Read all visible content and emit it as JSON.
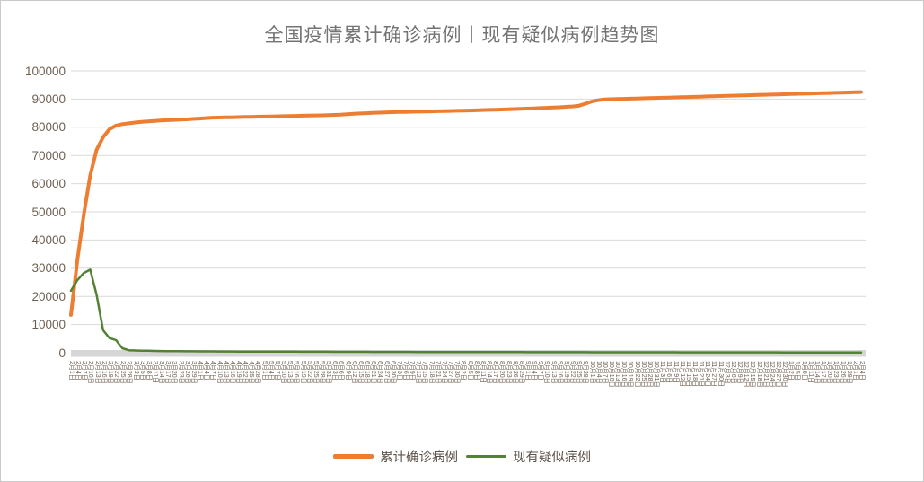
{
  "title": "全国疫情累计确诊病例丨现有疑似病例趋势图",
  "colors": {
    "title_text": "#737373",
    "tick_label": "#6e5f51",
    "gridline": "#d9d9d9",
    "axis_band": "#d6d6d6",
    "confirmed_line": "#ED7D31",
    "suspected_line": "#548235",
    "frame_border": "#c9c9c9",
    "background": "#ffffff"
  },
  "chart_data": {
    "type": "line",
    "title": "全国疫情累计确诊病例丨现有疑似病例趋势图",
    "xlabel": "",
    "ylabel": "",
    "ylim": [
      0,
      100000
    ],
    "grid": true,
    "legend_position": "bottom",
    "y_ticks": [
      0,
      10000,
      20000,
      30000,
      40000,
      50000,
      60000,
      70000,
      80000,
      90000,
      100000
    ],
    "x_labels": [
      "2月1日",
      "2月4日",
      "2月7日",
      "2月10日",
      "2月13日",
      "2月16日",
      "2月19日",
      "2月22日",
      "2月25日",
      "2月28日",
      "3月2日",
      "3月5日",
      "3月8日",
      "3月11日",
      "3月14日",
      "3月17日",
      "3月20日",
      "3月23日",
      "3月26日",
      "3月29日",
      "4月1日",
      "4月4日",
      "4月7日",
      "4月10日",
      "4月13日",
      "4月16日",
      "4月19日",
      "4月22日",
      "4月25日",
      "4月28日",
      "5月1日",
      "5月4日",
      "5月7日",
      "5月10日",
      "5月13日",
      "5月16日",
      "5月19日",
      "5月22日",
      "5月25日",
      "5月28日",
      "5月31日",
      "6月3日",
      "6月6日",
      "6月9日",
      "6月12日",
      "6月15日",
      "6月18日",
      "6月21日",
      "6月24日",
      "6月27日",
      "6月30日",
      "7月3日",
      "7月6日",
      "7月9日",
      "7月12日",
      "7月15日",
      "7月18日",
      "7月21日",
      "7月24日",
      "7月27日",
      "7月30日",
      "8月2日",
      "8月5日",
      "8月8日",
      "8月11日",
      "8月14日",
      "8月17日",
      "8月20日",
      "8月23日",
      "8月26日",
      "8月29日",
      "9月1日",
      "9月4日",
      "9月7日",
      "9月10日",
      "9月13日",
      "9月16日",
      "9月19日",
      "9月22日",
      "9月25日",
      "9月28日",
      "10月1日",
      "10月4日",
      "10月7日",
      "10月10日",
      "10月13日",
      "10月16日",
      "10月19日",
      "10月22日",
      "10月25日",
      "10月28日",
      "10月31日",
      "11月3日",
      "11月6日",
      "11月9日",
      "11月12日",
      "11月15日",
      "11月18日",
      "11月21日",
      "11月24日",
      "11月27日",
      "11月30日",
      "12月3日",
      "12月6日",
      "12月9日",
      "12月12日",
      "12月15日",
      "12月18日",
      "12月21日",
      "12月24日",
      "12月27日",
      "12月30日",
      "1月2日",
      "1月5日",
      "1月8日",
      "1月11日",
      "1月14日",
      "1月17日",
      "1月20日",
      "1月23日",
      "1月26日",
      "1月29日",
      "2月1日",
      "2月4日"
    ],
    "series": [
      {
        "name": "累计确诊病例",
        "color": "#ED7D31",
        "line_width": 4,
        "values": [
          13400,
          33000,
          49000,
          63000,
          72000,
          76500,
          79300,
          80600,
          81100,
          81400,
          81700,
          81900,
          82100,
          82250,
          82400,
          82500,
          82600,
          82700,
          82800,
          82950,
          83100,
          83250,
          83400,
          83450,
          83500,
          83550,
          83600,
          83650,
          83700,
          83750,
          83800,
          83850,
          83900,
          83950,
          84000,
          84050,
          84100,
          84150,
          84200,
          84250,
          84300,
          84400,
          84500,
          84650,
          84800,
          84900,
          85000,
          85100,
          85200,
          85280,
          85350,
          85400,
          85450,
          85500,
          85550,
          85600,
          85650,
          85700,
          85750,
          85800,
          85850,
          85900,
          85950,
          86020,
          86100,
          86170,
          86250,
          86320,
          86400,
          86470,
          86550,
          86620,
          86700,
          86800,
          86900,
          87000,
          87100,
          87250,
          87400,
          87600,
          88300,
          89100,
          89600,
          89900,
          89965,
          90030,
          90095,
          90160,
          90225,
          90290,
          90355,
          90420,
          90485,
          90550,
          90615,
          90680,
          90745,
          90810,
          90875,
          90940,
          91005,
          91070,
          91135,
          91200,
          91265,
          91330,
          91395,
          91460,
          91525,
          91590,
          91655,
          91720,
          91785,
          91850,
          91915,
          91980,
          92045,
          92110,
          92175,
          92240,
          92305,
          92370,
          92435,
          92500
        ]
      },
      {
        "name": "现有疑似病例",
        "color": "#548235",
        "line_width": 2.5,
        "values": [
          22000,
          25800,
          28300,
          29500,
          20500,
          8000,
          5200,
          4500,
          1600,
          900,
          800,
          740,
          690,
          650,
          615,
          585,
          560,
          540,
          520,
          505,
          490,
          478,
          466,
          455,
          445,
          436,
          428,
          420,
          413,
          406,
          400,
          394,
          388,
          382,
          376,
          370,
          364,
          358,
          352,
          346,
          340,
          334,
          328,
          322,
          316,
          310,
          305,
          300,
          295,
          290,
          285,
          280,
          276,
          272,
          268,
          264,
          260,
          256,
          252,
          248,
          244,
          240,
          236,
          232,
          228,
          224,
          220,
          217,
          214,
          211,
          208,
          205,
          202,
          199,
          196,
          193,
          190,
          187,
          184,
          181,
          178,
          175,
          172,
          169,
          166,
          163,
          160,
          158,
          156,
          154,
          152,
          150,
          148,
          146,
          144,
          142,
          140,
          138,
          136,
          134,
          132,
          130,
          128,
          126,
          124,
          122,
          120,
          118,
          116,
          114,
          112,
          110,
          108,
          106,
          104,
          102,
          100,
          98,
          96,
          94,
          92,
          90,
          88,
          86
        ]
      }
    ]
  }
}
